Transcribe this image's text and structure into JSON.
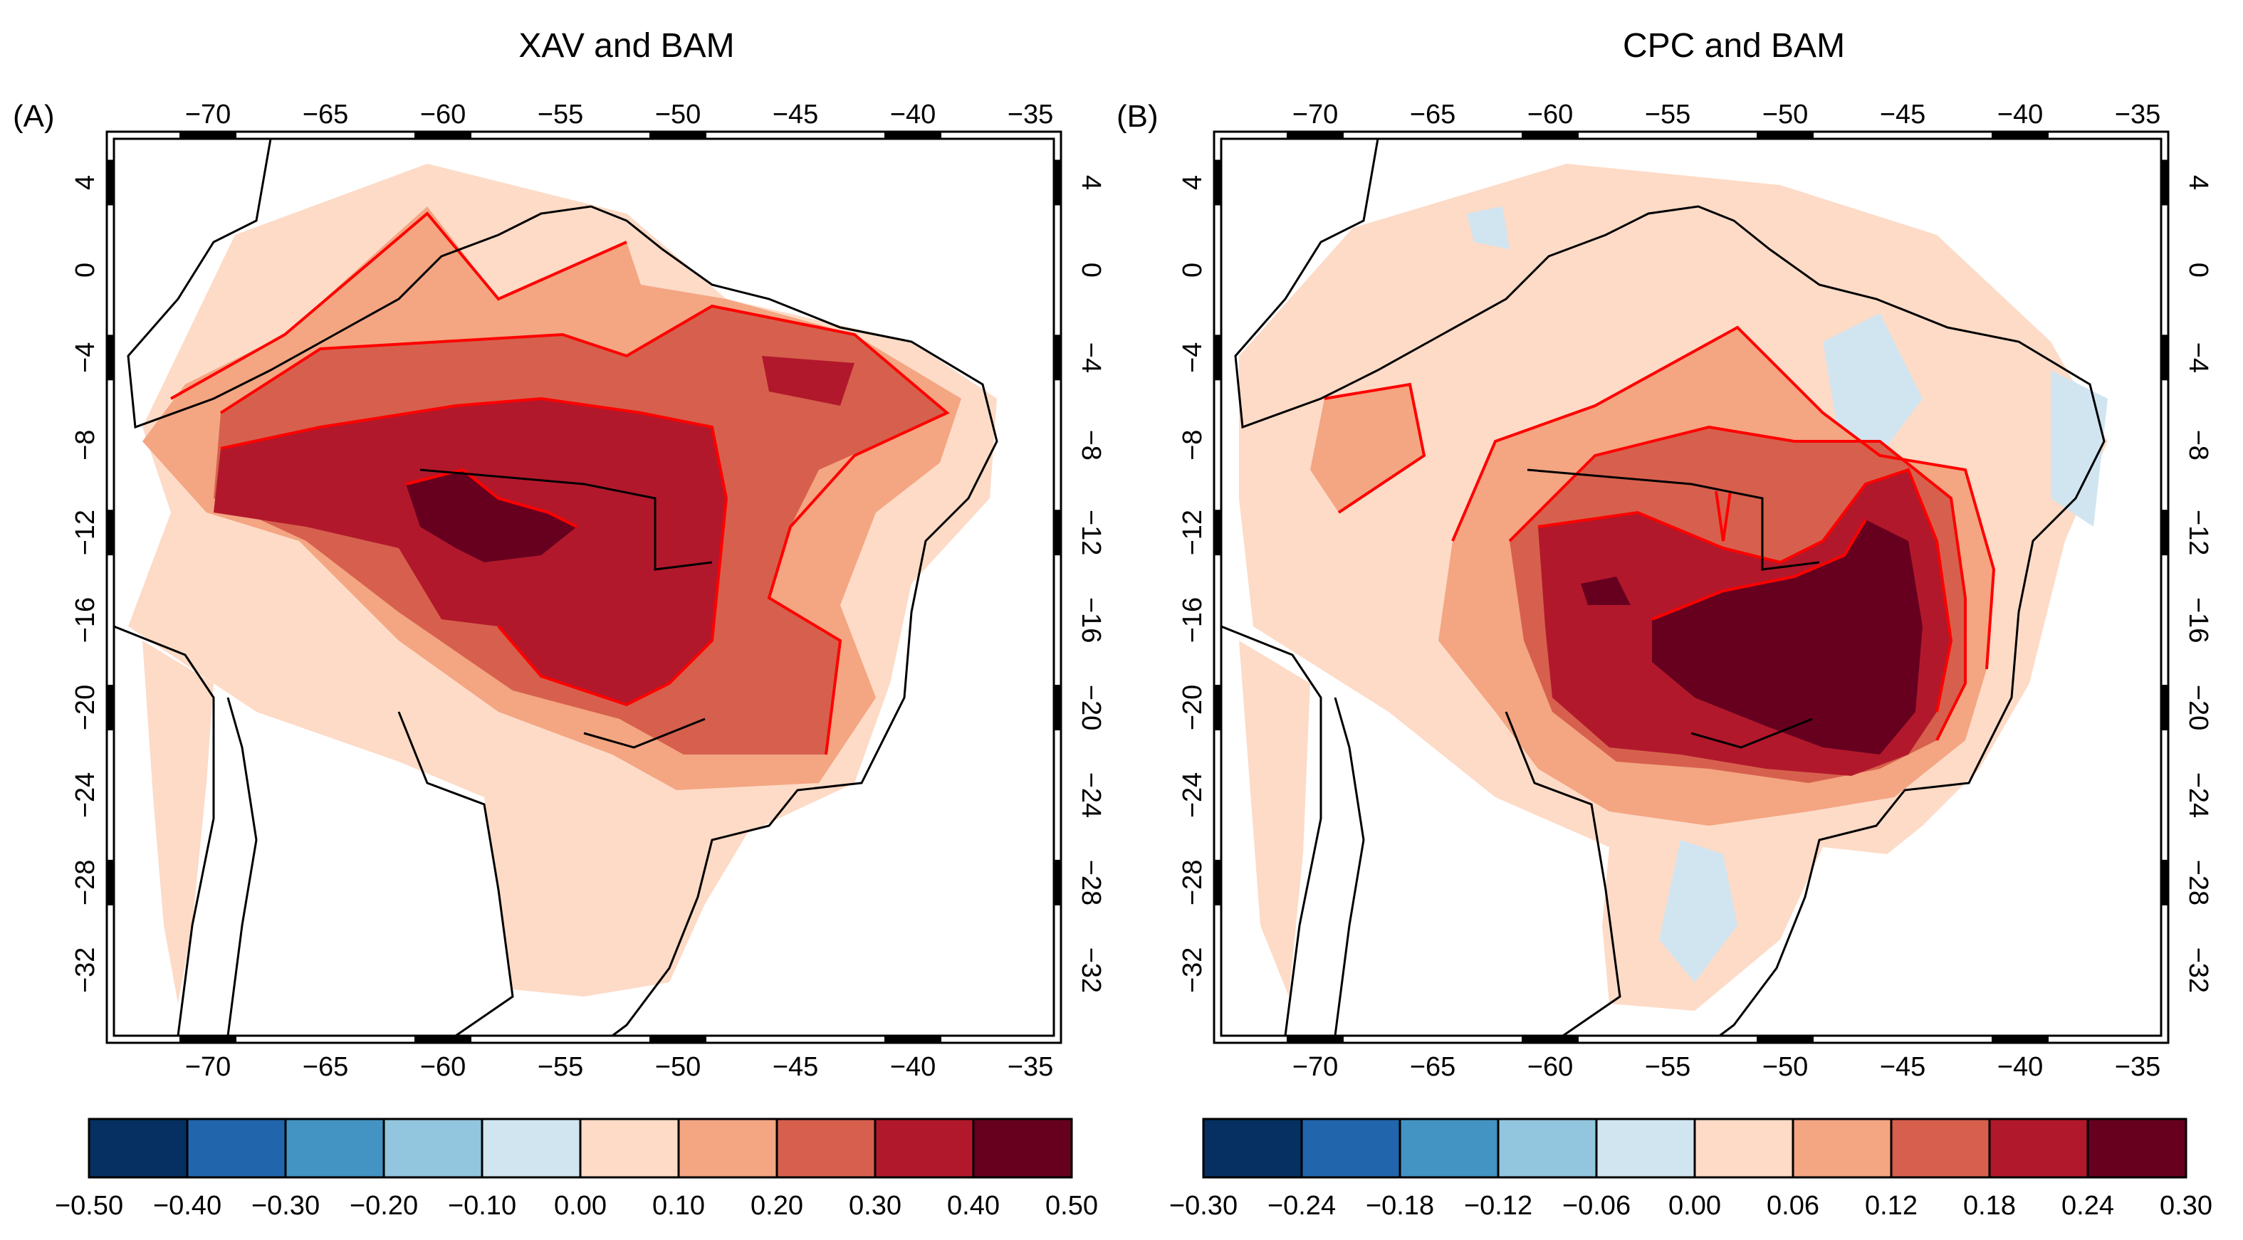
{
  "panels": [
    {
      "id": "A",
      "label": "(A)",
      "title": "XAV and BAM",
      "colorbar": [
        "-0.50",
        "-0.40",
        "-0.30",
        "-0.20",
        "-0.10",
        "0.00",
        "0.10",
        "0.20",
        "0.30",
        "0.40",
        "0.50"
      ]
    },
    {
      "id": "B",
      "label": "(B)",
      "title": "CPC and BAM",
      "colorbar": [
        "-0.30",
        "-0.24",
        "-0.18",
        "-0.12",
        "-0.06",
        "0.00",
        "0.06",
        "0.12",
        "0.18",
        "0.24",
        "0.30"
      ]
    }
  ],
  "lon_ticks": [
    "-70",
    "-65",
    "-60",
    "-55",
    "-50",
    "-45",
    "-40",
    "-35"
  ],
  "lat_ticks": [
    "4",
    "0",
    "-4",
    "-8",
    "-12",
    "-16",
    "-20",
    "-24",
    "-28",
    "-32"
  ],
  "colors": {
    "scale": [
      "#053061",
      "#2166ac",
      "#4393c3",
      "#92c5de",
      "#d1e5f0",
      "#fddbc7",
      "#f4a582",
      "#d6604d",
      "#b2182b",
      "#67001f"
    ],
    "contour": "#ff0000",
    "border": "#000000"
  }
}
